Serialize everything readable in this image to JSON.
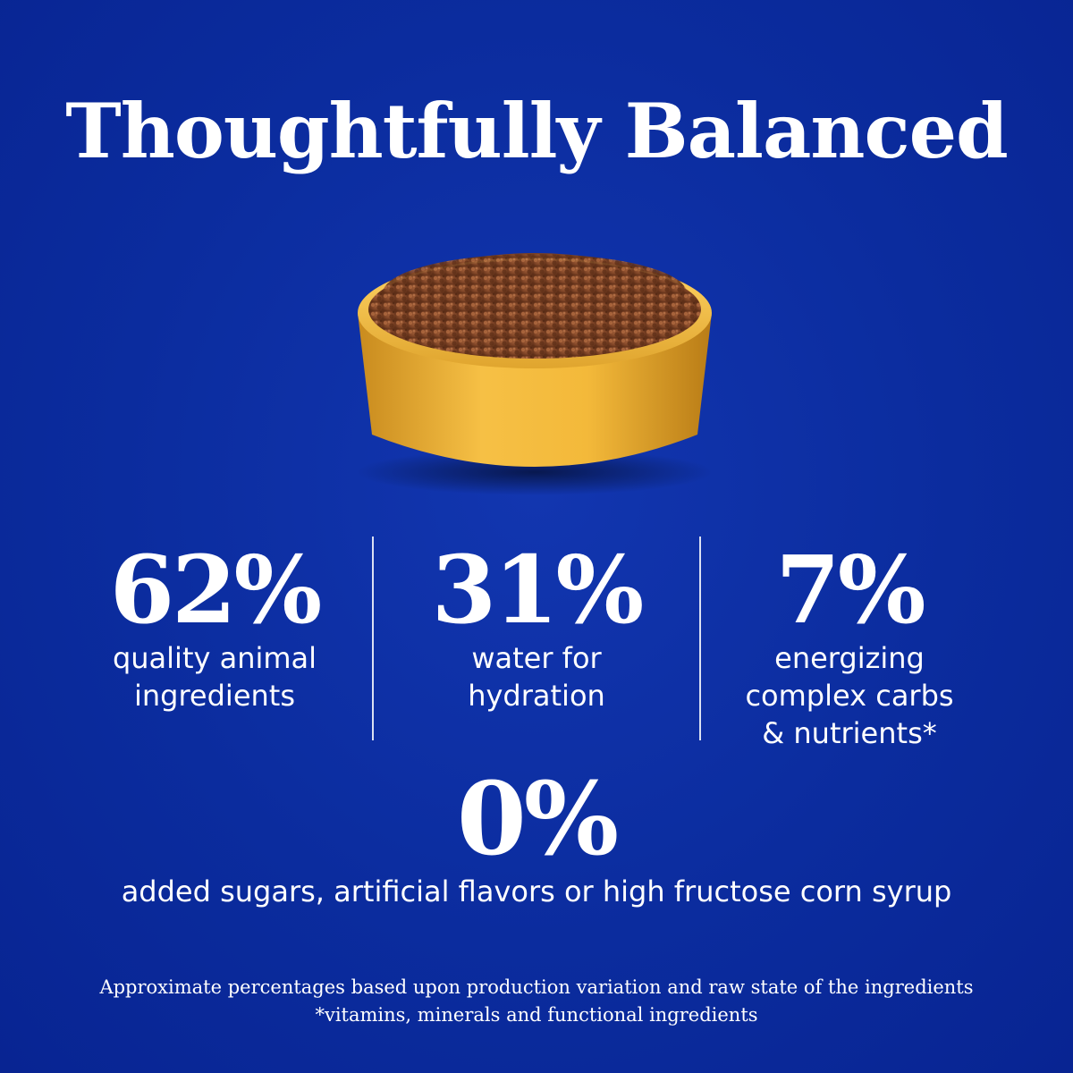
{
  "title": "Thoughtfully Balanced",
  "image": {
    "icon": "food-bowl-icon"
  },
  "stats": [
    {
      "value": "62%",
      "line1": "quality animal",
      "line2": "ingredients",
      "line3": ""
    },
    {
      "value": "31%",
      "line1": "water for",
      "line2": "hydration",
      "line3": ""
    },
    {
      "value": "7%",
      "line1": "energizing",
      "line2": "complex carbs",
      "line3": "& nutrients*"
    },
    {
      "value": "0%",
      "line1": "added sugars, artificial flavors or high fructose corn syrup",
      "line2": "",
      "line3": ""
    }
  ],
  "footnotes": {
    "line1": "Approximate percentages based upon production variation and raw state of the ingredients",
    "line2": "*vitamins, minerals and functional ingredients"
  },
  "colors": {
    "background": "#0b2c9e",
    "text": "#ffffff",
    "bowl": "#f2b636"
  }
}
